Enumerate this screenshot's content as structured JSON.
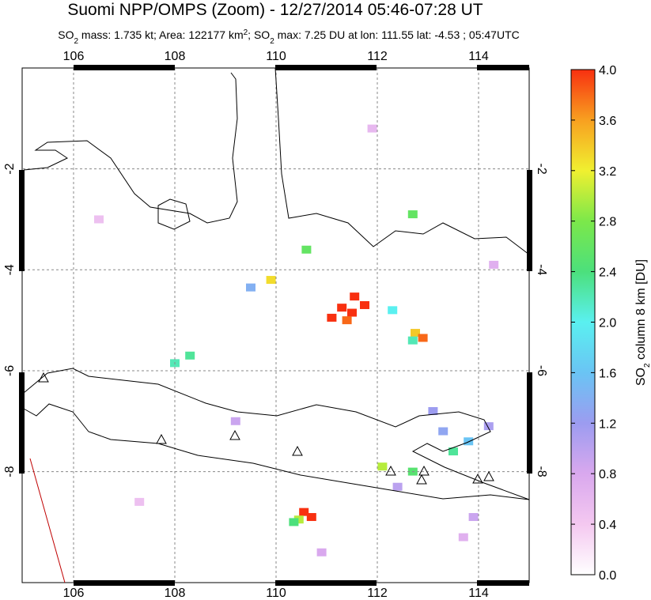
{
  "chart_data": {
    "type": "map",
    "title": "Suomi NPP/OMPS (Zoom) - 12/27/2014 05:46-07:28 UT",
    "subtitle": [
      "SO",
      "2",
      " mass: 1.735 kt; Area: 122177 km",
      "2",
      "; SO",
      "2",
      " max: 7.25 DU at lon: 111.55 lat: -4.53 ; 05:47UTC"
    ],
    "xlim": [
      105,
      115
    ],
    "ylim": [
      -10.2,
      0
    ],
    "xticks": [
      106,
      108,
      110,
      112,
      114
    ],
    "yticks": [
      -2,
      -4,
      -6,
      -8
    ],
    "grid": true,
    "colorbar": {
      "label": [
        "SO",
        "2",
        " column 8 km [DU]"
      ],
      "lim": [
        0,
        4
      ],
      "ticks": [
        {
          "value": 0,
          "label": "0.0"
        },
        0.4,
        0.8,
        1.2,
        1.6,
        {
          "value": 2,
          "label": "2.0"
        },
        2.4,
        2.8,
        3.2,
        3.6,
        {
          "value": 4,
          "label": "4.0"
        }
      ],
      "colors": [
        "#ffffff",
        "#f4c8f0",
        "#d9a8ee",
        "#9c9cf0",
        "#6ac4f4",
        "#5af0f0",
        "#4ce07c",
        "#7ce84a",
        "#f0f030",
        "#f8a020",
        "#f83010"
      ]
    },
    "pixels": {
      "lon": [
        111.55,
        111.3,
        111.1,
        111.5,
        111.75,
        111.4,
        112.75,
        112.9,
        112.7,
        112.3,
        110.55,
        110.7,
        110.45,
        110.35,
        108.0,
        108.3,
        109.9,
        110.6,
        112.7,
        113.5,
        113.8,
        112.7,
        112.1,
        113.3,
        114.2,
        109.5,
        112.4,
        113.9,
        110.9,
        106.5,
        111.9,
        114.3,
        113.1,
        109.2,
        107.3,
        113.7
      ],
      "lat": [
        -4.53,
        -4.75,
        -4.95,
        -4.85,
        -4.7,
        -5.0,
        -5.25,
        -5.35,
        -5.4,
        -4.8,
        -8.8,
        -8.9,
        -8.95,
        -9.0,
        -5.85,
        -5.7,
        -4.2,
        -3.6,
        -2.9,
        -7.6,
        -7.4,
        -8.0,
        -7.9,
        -7.2,
        -7.1,
        -4.35,
        -8.3,
        -8.9,
        -9.6,
        -3.0,
        -1.2,
        -3.9,
        -6.8,
        -7.0,
        -8.6,
        -9.3
      ],
      "values": [
        7.25,
        4.5,
        4.2,
        4.6,
        4.3,
        3.8,
        3.4,
        3.8,
        2.2,
        2.0,
        4.1,
        4.3,
        3.0,
        2.4,
        2.2,
        2.3,
        3.3,
        2.6,
        2.6,
        2.3,
        1.6,
        2.5,
        3.0,
        1.3,
        1.1,
        1.4,
        1.0,
        0.9,
        0.8,
        0.5,
        0.6,
        0.7,
        1.2,
        0.9,
        0.5,
        0.7
      ]
    }
  }
}
